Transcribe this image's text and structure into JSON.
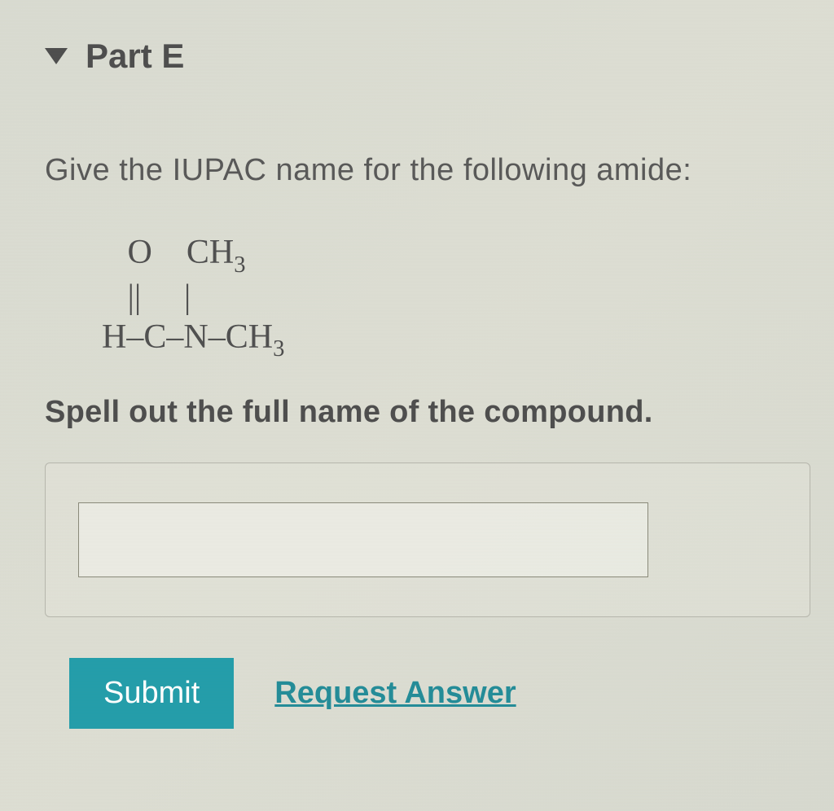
{
  "part": {
    "label": "Part E"
  },
  "question": {
    "prompt": "Give the IUPAC name for the following amide:",
    "instruction": "Spell out the full name of the compound."
  },
  "structure": {
    "line1_atom1": "O",
    "line1_atom2": "CH",
    "line1_sub": "3",
    "line2_bonds": "||     |",
    "line3_left": "H",
    "line3_c": "C",
    "line3_n": "N",
    "line3_ch": "CH",
    "line3_sub": "3"
  },
  "answer": {
    "value": "",
    "placeholder": ""
  },
  "buttons": {
    "submit": "Submit",
    "request": "Request Answer"
  },
  "colors": {
    "submit_bg": "#1f9ba8",
    "link_color": "#1f8a96",
    "text_dark": "#4a4a4a",
    "text_medium": "#555555"
  }
}
